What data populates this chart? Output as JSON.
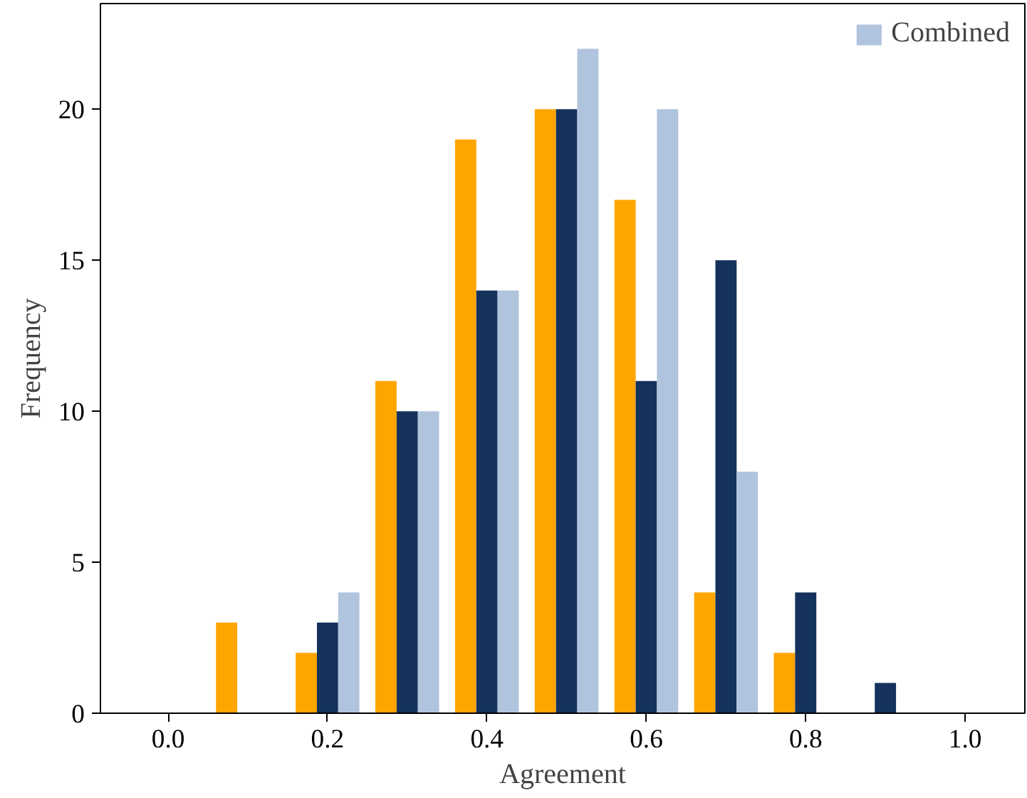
{
  "chart_data": {
    "type": "histogram",
    "xlabel": "Agreement",
    "ylabel": "Frequency",
    "bins": [
      0.05,
      0.15,
      0.25,
      0.35,
      0.45,
      0.55,
      0.65,
      0.75,
      0.85,
      0.95
    ],
    "series": [
      {
        "color": "#ffa500",
        "values": [
          3,
          2,
          11,
          19,
          20,
          17,
          4,
          2,
          0
        ]
      },
      {
        "color": "#14325c",
        "values": [
          0,
          3,
          10,
          14,
          20,
          11,
          15,
          4,
          1
        ]
      },
      {
        "name": "Combined",
        "color": "#b0c4de",
        "values": [
          0,
          4,
          10,
          14,
          22,
          20,
          8,
          0,
          0
        ]
      }
    ],
    "xlim": [
      -0.085,
      1.075
    ],
    "ylim": [
      0,
      23.5
    ],
    "xticks": [
      {
        "value": 0.0,
        "label": "0.0"
      },
      0.2,
      0.4,
      0.6,
      0.8,
      {
        "value": 1.0,
        "label": "1.0"
      }
    ],
    "yticks": [
      0,
      5,
      10,
      15,
      20
    ],
    "grid": false,
    "legend": "top right"
  }
}
